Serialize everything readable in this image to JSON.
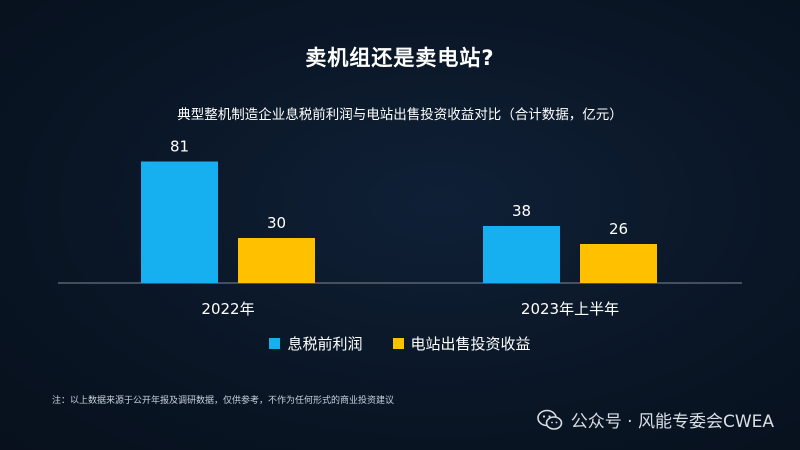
{
  "header": {
    "title": "卖机组还是卖电站?",
    "subtitle": "典型整机制造企业息税前利润与电站出售投资收益对比（合计数据，亿元）"
  },
  "chart_data": {
    "type": "bar",
    "categories": [
      "2022年",
      "2023年上半年"
    ],
    "series": [
      {
        "name": "息税前利润",
        "values": [
          81,
          38
        ],
        "color": "#16aff0"
      },
      {
        "name": "电站出售投资收益",
        "values": [
          30,
          26
        ],
        "color": "#ffc000"
      }
    ],
    "ylim": [
      0,
      90
    ],
    "grid": false,
    "legend_position": "bottom"
  },
  "footer": {
    "note": "注：以上数据来源于公开年报及调研数据，仅供参考，不作为任何形式的商业投资建议",
    "watermark": "公众号 · 风能专委会CWEA",
    "watermark_icon": "wechat-icon"
  }
}
